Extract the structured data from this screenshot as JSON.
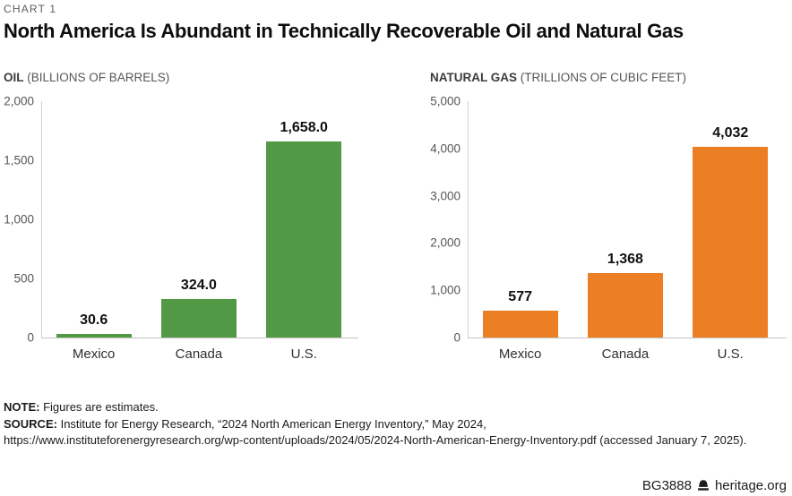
{
  "kicker": "CHART 1",
  "title": "North America Is Abundant in Technically Recoverable Oil and Natural Gas",
  "chart_data": [
    {
      "type": "bar",
      "title": "OIL",
      "subtitle": "(BILLIONS OF BARRELS)",
      "categories": [
        "Mexico",
        "Canada",
        "U.S."
      ],
      "values": [
        30.6,
        324.0,
        1658.0
      ],
      "value_labels": [
        "30.6",
        "324.0",
        "1,658.0"
      ],
      "ylim": [
        0,
        2000
      ],
      "yticks": [
        0,
        500,
        1000,
        1500,
        2000
      ],
      "ytick_labels": [
        "0",
        "500",
        "1,000",
        "1,500",
        "2,000"
      ],
      "bar_color": "#519944",
      "grid": false,
      "legend": "none"
    },
    {
      "type": "bar",
      "title": "NATURAL GAS",
      "subtitle": "(TRILLIONS OF CUBIC FEET)",
      "categories": [
        "Mexico",
        "Canada",
        "U.S."
      ],
      "values": [
        577,
        1368,
        4032
      ],
      "value_labels": [
        "577",
        "1,368",
        "4,032"
      ],
      "ylim": [
        0,
        5000
      ],
      "yticks": [
        0,
        1000,
        2000,
        3000,
        4000,
        5000
      ],
      "ytick_labels": [
        "0",
        "1,000",
        "2,000",
        "3,000",
        "4,000",
        "5,000"
      ],
      "bar_color": "#ec7e23",
      "grid": false,
      "legend": "none"
    }
  ],
  "notes": {
    "note_label": "NOTE:",
    "note_text": "Figures are estimates.",
    "source_label": "SOURCE:",
    "source_line1": "Institute for Energy Research, “2024 North American Energy Inventory,” May 2024,",
    "source_line2": "https://www.instituteforenergyresearch.org/wp-content/uploads/2024/05/2024-North-American-Energy-Inventory.pdf (accessed January 7, 2025)."
  },
  "footer": {
    "doc_id": "BG3888",
    "logo_icon": "liberty-bell-icon",
    "site": "heritage.org"
  }
}
